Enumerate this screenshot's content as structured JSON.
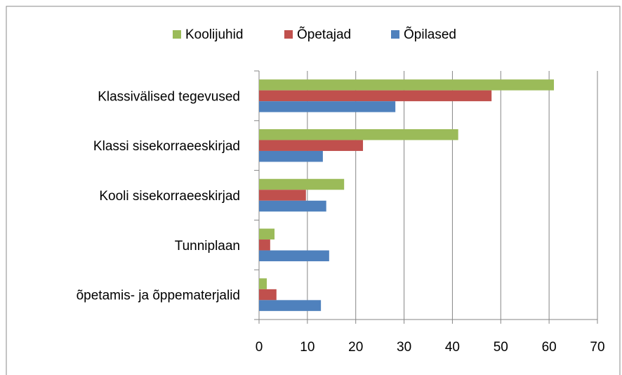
{
  "chart_data": {
    "type": "hbar",
    "categories": [
      "Klassivälised tegevused",
      "Klassi sisekorraeeskirjad",
      "Kooli sisekorraeeskirjad",
      "Tunniplaan",
      "õpetamis- ja õppematerjalid"
    ],
    "series": [
      {
        "name": "Koolijuhid",
        "color": "#9bbb59",
        "values": [
          61.0,
          41.2,
          17.6,
          3.2,
          1.6
        ]
      },
      {
        "name": "Õpetajad",
        "color": "#c0504d",
        "values": [
          48.1,
          21.5,
          9.7,
          2.3,
          3.6
        ]
      },
      {
        "name": "Õpilased",
        "color": "#4f81bd",
        "values": [
          28.2,
          13.2,
          13.9,
          14.5,
          12.8
        ]
      }
    ],
    "xlim": [
      0,
      70
    ],
    "xticks": [
      0,
      10,
      20,
      30,
      40,
      50,
      60,
      70
    ],
    "grid": true,
    "legend": "top"
  }
}
